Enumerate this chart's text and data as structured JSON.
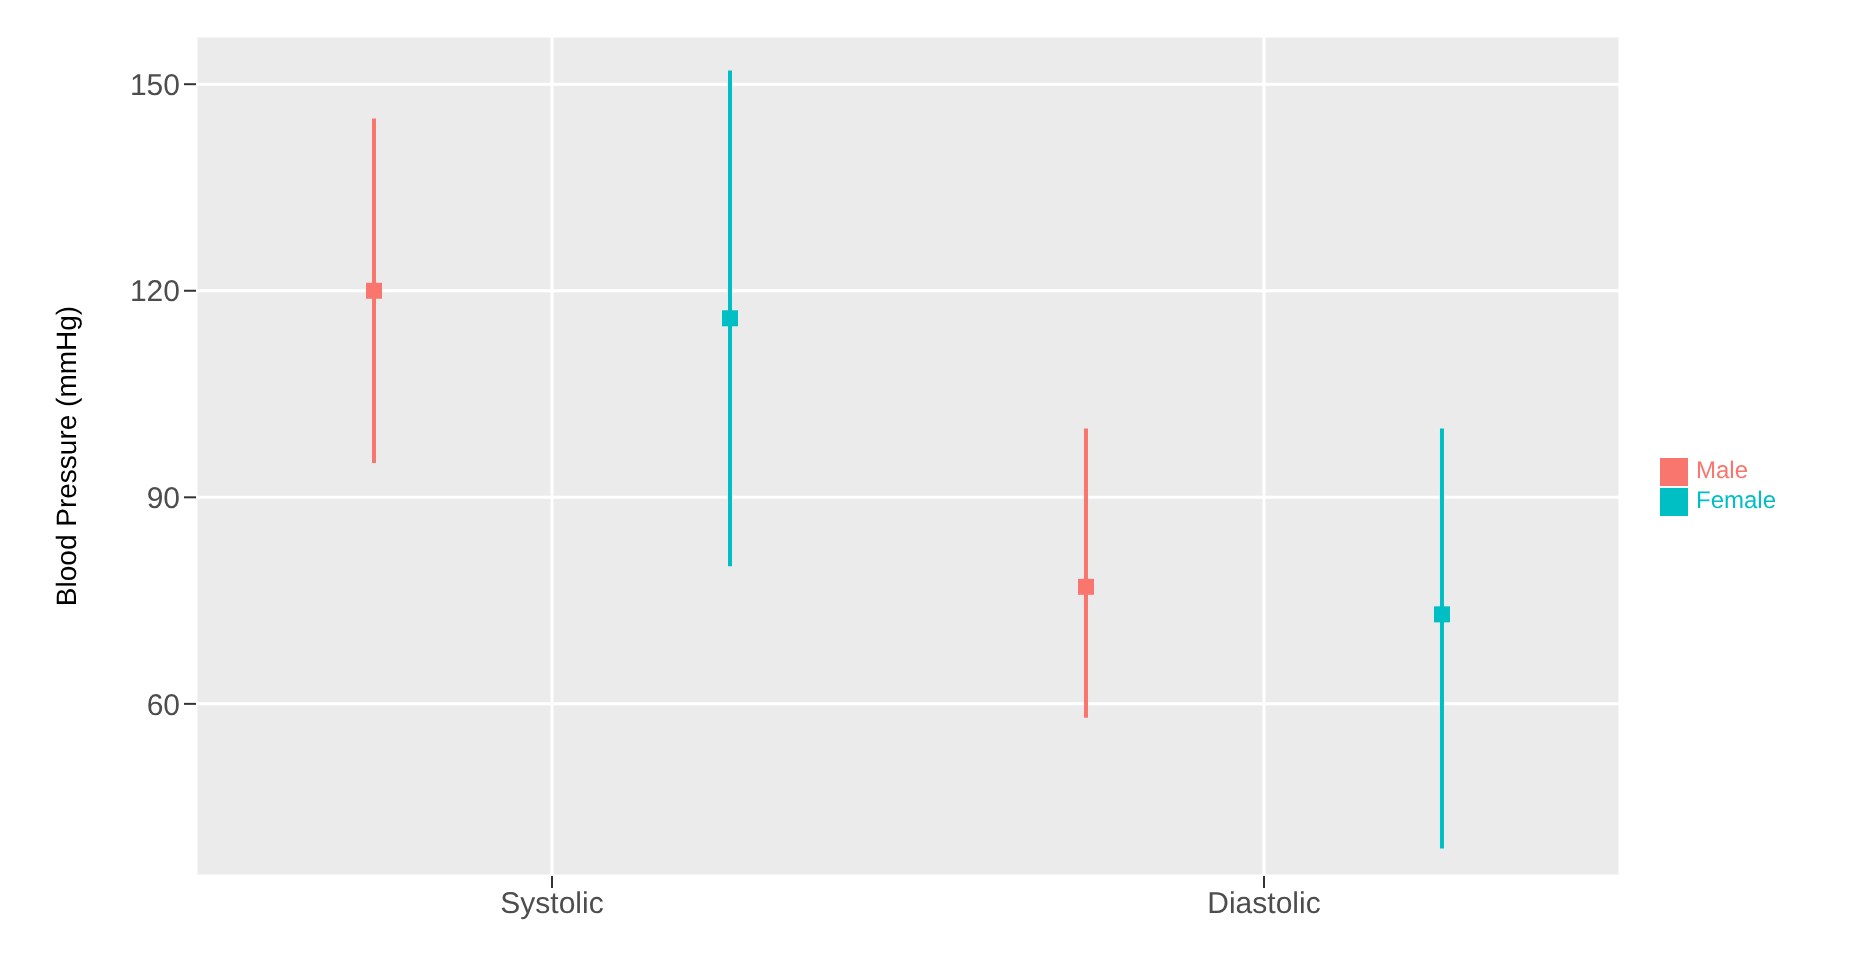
{
  "chart_data": {
    "type": "scatter",
    "ylabel": "Blood Pressure (mmHg)",
    "categories": [
      "Systolic",
      "Diastolic"
    ],
    "series": [
      {
        "name": "Male",
        "color": "#f8766d",
        "values": [
          120,
          77
        ],
        "errors": [
          [
            95,
            145
          ],
          [
            58,
            100
          ]
        ]
      },
      {
        "name": "Female",
        "color": "#00bfc4",
        "values": [
          116,
          73
        ],
        "errors": [
          [
            80,
            152
          ],
          [
            39,
            100
          ]
        ]
      }
    ],
    "ylim": [
      35,
      157
    ],
    "yticks": [
      60,
      90,
      120,
      150
    ],
    "grid": true,
    "legend": "right",
    "marker": "square"
  }
}
